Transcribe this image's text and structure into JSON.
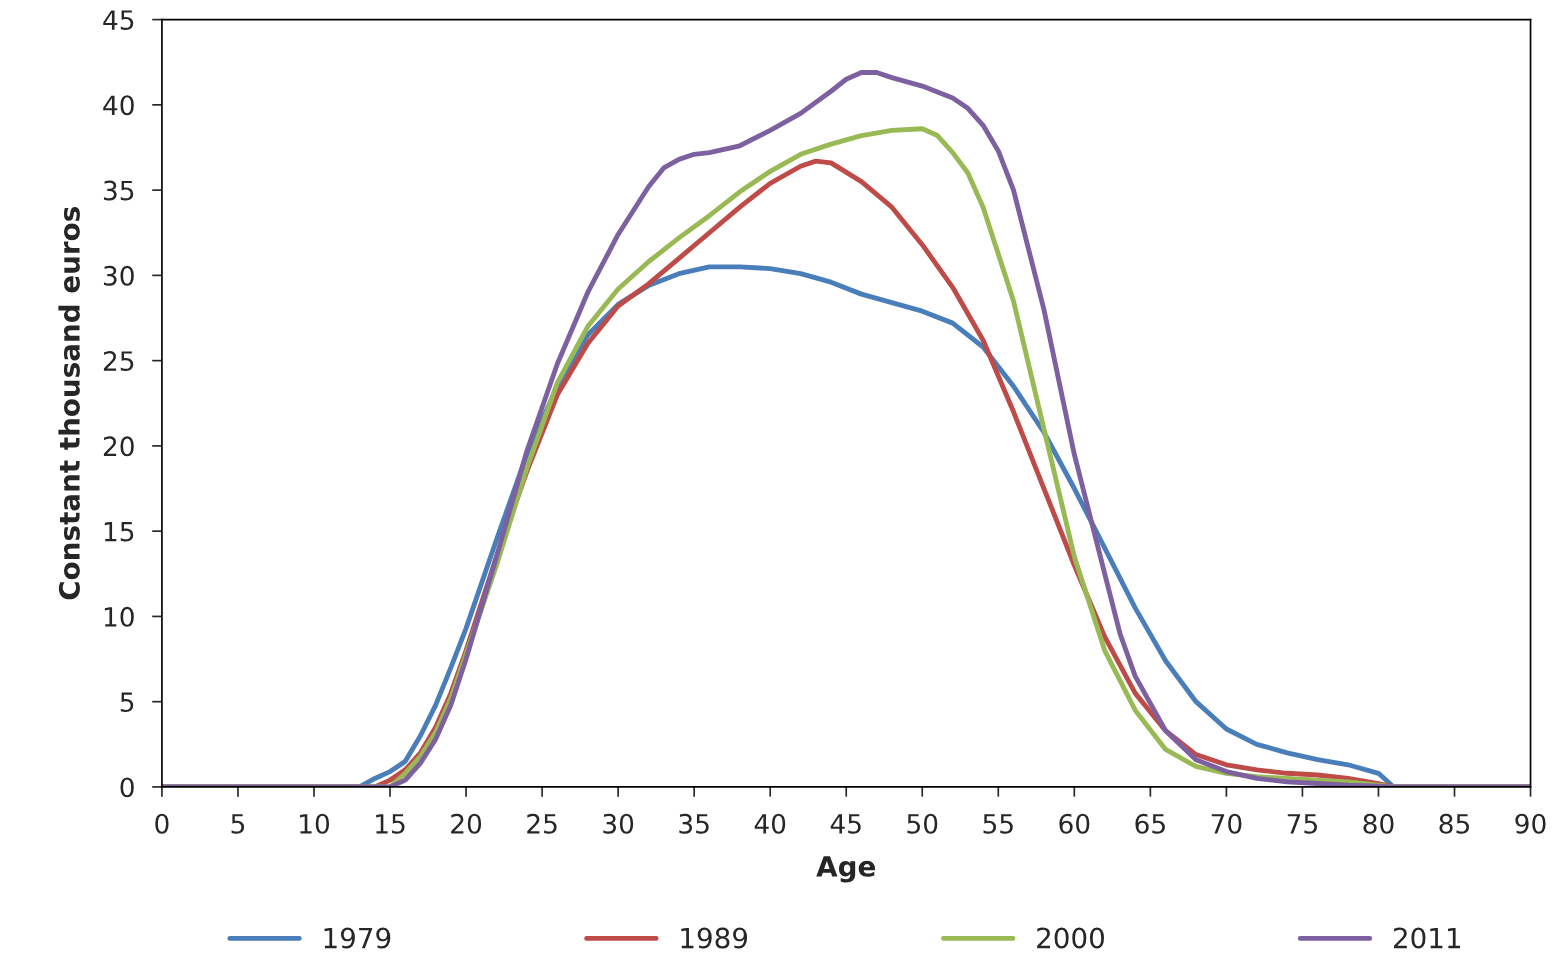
{
  "chart_data": {
    "type": "line",
    "xlabel": "Age",
    "ylabel": "Constant thousand euros",
    "xlim": [
      0,
      90
    ],
    "xticks": [
      0,
      5,
      10,
      15,
      20,
      25,
      30,
      35,
      40,
      45,
      50,
      55,
      60,
      65,
      70,
      75,
      80,
      85,
      90
    ],
    "ylim": [
      0,
      45
    ],
    "yticks": [
      0,
      5,
      10,
      15,
      20,
      25,
      30,
      35,
      40,
      45
    ],
    "grid": false,
    "legend": "bottom",
    "marker": "none",
    "line_style": "solid",
    "series": [
      {
        "name": "1979",
        "color": "#4a7ebb",
        "x": [
          0,
          13,
          14,
          15,
          16,
          17,
          18,
          19,
          20,
          22,
          24,
          26,
          28,
          30,
          32,
          34,
          36,
          38,
          40,
          42,
          44,
          46,
          48,
          50,
          52,
          54,
          56,
          58,
          60,
          62,
          64,
          66,
          68,
          70,
          72,
          74,
          76,
          78,
          80,
          81,
          90
        ],
        "values": [
          0,
          0,
          0.5,
          0.9,
          1.5,
          3,
          4.8,
          7,
          9.3,
          14.5,
          19.5,
          23.5,
          26.5,
          28.3,
          29.4,
          30.1,
          30.5,
          30.5,
          30.4,
          30.1,
          29.6,
          28.9,
          28.4,
          27.9,
          27.2,
          25.8,
          23.5,
          20.8,
          17.5,
          14,
          10.5,
          7.4,
          5,
          3.4,
          2.5,
          2,
          1.6,
          1.3,
          0.8,
          0,
          0
        ]
      },
      {
        "name": "1989",
        "color": "#be4b48",
        "x": [
          0,
          14,
          15,
          16,
          17,
          18,
          19,
          20,
          22,
          24,
          26,
          28,
          30,
          32,
          34,
          36,
          38,
          40,
          42,
          43,
          44,
          46,
          48,
          50,
          52,
          54,
          56,
          58,
          60,
          62,
          64,
          66,
          68,
          70,
          72,
          74,
          76,
          78,
          80,
          81,
          90
        ],
        "values": [
          0,
          0,
          0.4,
          1,
          2,
          3.5,
          5.5,
          8,
          13.5,
          18.5,
          23,
          26,
          28.2,
          29.5,
          31,
          32.5,
          34,
          35.4,
          36.4,
          36.7,
          36.6,
          35.5,
          34,
          31.8,
          29.3,
          26.2,
          22,
          17.5,
          13,
          8.8,
          5.5,
          3.3,
          1.9,
          1.3,
          1.0,
          0.8,
          0.7,
          0.5,
          0.2,
          0,
          0
        ]
      },
      {
        "name": "2000",
        "color": "#98b954",
        "x": [
          0,
          15,
          16,
          17,
          18,
          19,
          20,
          22,
          24,
          26,
          28,
          30,
          32,
          34,
          36,
          38,
          40,
          42,
          44,
          46,
          48,
          50,
          51,
          52,
          53,
          54,
          56,
          58,
          60,
          62,
          64,
          66,
          68,
          70,
          72,
          74,
          76,
          78,
          80,
          81,
          90
        ],
        "values": [
          0,
          0,
          0.8,
          1.8,
          3.2,
          5.2,
          7.8,
          13,
          18.7,
          23.7,
          27,
          29.2,
          30.8,
          32.2,
          33.5,
          34.9,
          36.1,
          37.1,
          37.7,
          38.2,
          38.5,
          38.6,
          38.2,
          37.2,
          36,
          34,
          28.5,
          21,
          13.5,
          8,
          4.5,
          2.2,
          1.2,
          0.8,
          0.6,
          0.5,
          0.4,
          0.3,
          0.1,
          0,
          0
        ]
      },
      {
        "name": "2011",
        "color": "#7d60a0",
        "x": [
          0,
          15,
          16,
          17,
          18,
          19,
          20,
          22,
          24,
          26,
          28,
          30,
          32,
          33,
          34,
          35,
          36,
          38,
          40,
          42,
          44,
          45,
          46,
          47,
          48,
          50,
          52,
          53,
          54,
          55,
          56,
          58,
          60,
          62,
          63,
          64,
          66,
          68,
          70,
          72,
          74,
          76,
          78,
          80,
          81,
          90
        ],
        "values": [
          0,
          0,
          0.4,
          1.4,
          2.8,
          4.8,
          7.5,
          13.5,
          19.7,
          24.8,
          29,
          32.4,
          35.2,
          36.3,
          36.8,
          37.1,
          37.2,
          37.6,
          38.5,
          39.5,
          40.8,
          41.5,
          41.9,
          41.9,
          41.6,
          41.1,
          40.4,
          39.8,
          38.8,
          37.3,
          35,
          28,
          19.5,
          12.5,
          9,
          6.5,
          3.3,
          1.6,
          0.9,
          0.5,
          0.3,
          0.2,
          0.1,
          0.05,
          0,
          0
        ]
      }
    ]
  }
}
